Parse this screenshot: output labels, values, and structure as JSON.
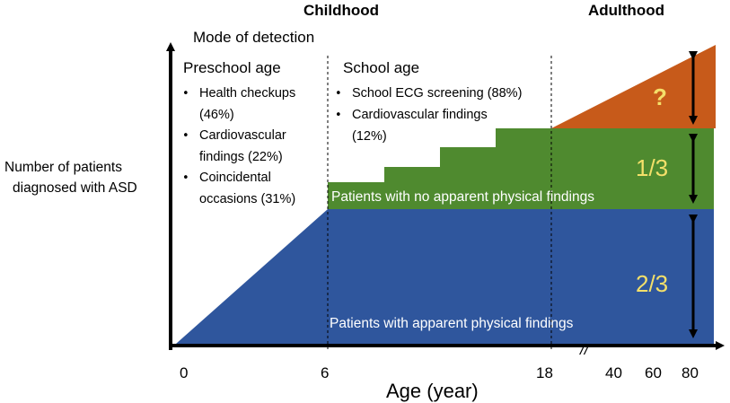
{
  "colors": {
    "blue_band": "#2f569d",
    "green_band": "#4f8a2f",
    "orange_band": "#c75a1a",
    "fraction_text": "#f4e06a",
    "band_text": "#ffffff",
    "axis": "#000000"
  },
  "periods": {
    "childhood": "Childhood",
    "adulthood": "Adulthood"
  },
  "mode_label": "Mode of detection",
  "preschool": {
    "heading": "Preschool age",
    "bullet_glyph": "•",
    "lines": [
      "Health checkups",
      "(46%)",
      "Cardiovascular",
      "findings (22%)",
      "Coincidental",
      "occasions (31%)"
    ]
  },
  "school": {
    "heading": "School age",
    "bullet_glyph": "•",
    "lines": [
      "School ECG screening (88%)",
      "Cardiovascular findings",
      "(12%)"
    ]
  },
  "y_axis_label": [
    "Number of patients",
    "diagnosed with ASD"
  ],
  "x_axis_label": "Age (year)",
  "x_ticks": [
    "0",
    "6",
    "18",
    "40",
    "60",
    "80"
  ],
  "axis_break": "//",
  "bands": {
    "no_findings_label": "Patients with no apparent physical findings",
    "findings_label": "Patients with apparent physical findings",
    "unknown_label": "?",
    "fraction_green": "1/3",
    "fraction_blue": "2/3"
  }
}
